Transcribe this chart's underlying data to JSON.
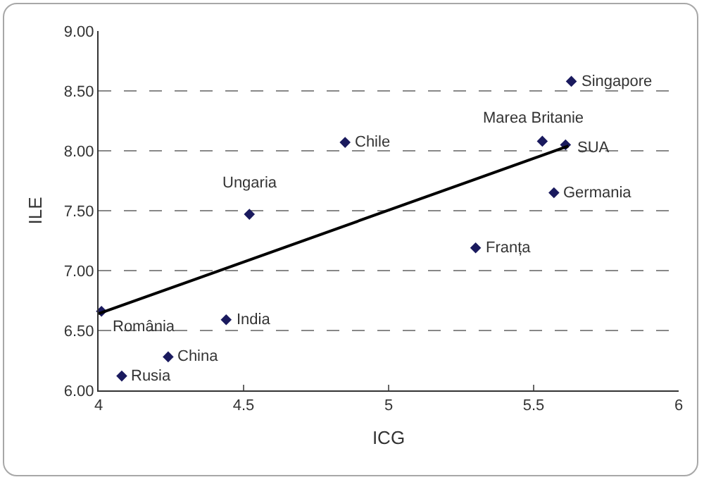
{
  "chart_data": {
    "type": "scatter",
    "xlabel": "ICG",
    "ylabel": "ILE",
    "series": [
      {
        "color": "#1a1a5e",
        "marker": "diamond",
        "x": [
          5.63,
          5.53,
          5.61,
          4.85,
          5.57,
          4.52,
          5.3,
          4.01,
          4.44,
          4.24,
          4.08
        ],
        "values": [
          8.58,
          8.08,
          8.05,
          8.07,
          7.65,
          7.47,
          7.19,
          6.66,
          6.59,
          6.28,
          6.12
        ]
      },
      {
        "type": "line",
        "color": "#000000",
        "marker": "none",
        "x": [
          4.0,
          5.62
        ],
        "values": [
          6.64,
          8.04
        ]
      }
    ],
    "annotations": [
      {
        "text": "Singapore",
        "x": 5.63,
        "y": 8.58
      },
      {
        "text": "Marea Britanie",
        "x": 5.53,
        "y": 8.08
      },
      {
        "text": "SUA",
        "x": 5.61,
        "y": 8.05
      },
      {
        "text": "Chile",
        "x": 4.85,
        "y": 8.07
      },
      {
        "text": "Germania",
        "x": 5.57,
        "y": 7.65
      },
      {
        "text": "Ungaria",
        "x": 4.52,
        "y": 7.47
      },
      {
        "text": "Franța",
        "x": 5.3,
        "y": 7.19
      },
      {
        "text": "România",
        "x": 4.01,
        "y": 6.66
      },
      {
        "text": "India",
        "x": 4.44,
        "y": 6.59
      },
      {
        "text": "China",
        "x": 4.24,
        "y": 6.28
      },
      {
        "text": "Rusia",
        "x": 4.08,
        "y": 6.12
      }
    ],
    "xlim": [
      4,
      6
    ],
    "xticks": [
      4,
      4.5,
      5,
      5.5,
      6
    ],
    "ylim": [
      6,
      9
    ],
    "yticks": [
      {
        "value": 6,
        "label": "6.00"
      },
      {
        "value": 6.5,
        "label": "6.50"
      },
      {
        "value": 7,
        "label": "7.00"
      },
      {
        "value": 7.5,
        "label": "7.50"
      },
      {
        "value": 8,
        "label": "8.00"
      },
      {
        "value": 8.5,
        "label": "8.50"
      },
      {
        "value": 9,
        "label": "9.00"
      }
    ],
    "grid": "y",
    "line_style": "solid"
  }
}
